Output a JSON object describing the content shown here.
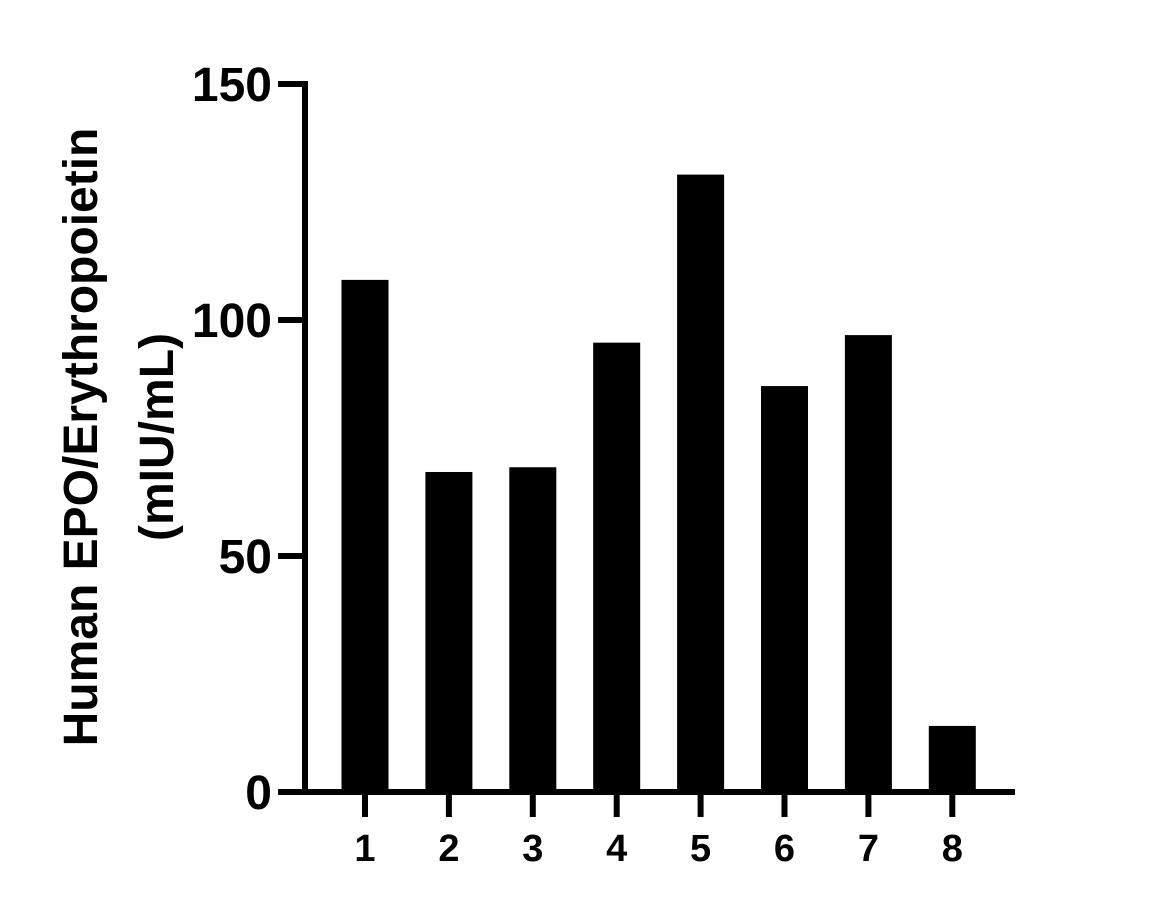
{
  "chart_data": {
    "type": "bar",
    "title": "",
    "xlabel": "",
    "ylabel": "Human EPO/Erythropoietin (mIU/mL)",
    "ylabel_lines": [
      "Human EPO/Erythropoietin",
      "(mIU/mL)"
    ],
    "categories": [
      "1",
      "2",
      "3",
      "4",
      "5",
      "6",
      "7",
      "8"
    ],
    "values": [
      108.5,
      67.8,
      68.8,
      95.2,
      130.8,
      86.0,
      96.8,
      14.0
    ],
    "ylim": [
      0,
      150
    ],
    "yticks": [
      "0",
      "50",
      "100",
      "150"
    ],
    "grid": false,
    "bar_color": "#000000"
  }
}
